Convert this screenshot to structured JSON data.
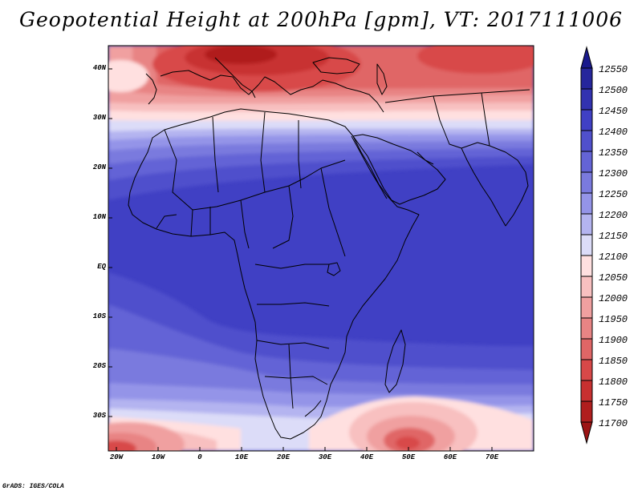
{
  "title": "Geopotential Height at 200hPa [gpm], VT: 2017111006",
  "credit": "GrADS: IGES/COLA",
  "lat_labels": [
    "40N",
    "30N",
    "20N",
    "10N",
    "EQ",
    "10S",
    "20S",
    "30S"
  ],
  "lon_labels": [
    "20W",
    "10W",
    "0",
    "10E",
    "20E",
    "30E",
    "40E",
    "50E",
    "60E",
    "70E"
  ],
  "colorbar": {
    "labels": [
      "12550",
      "12500",
      "12450",
      "12400",
      "12350",
      "12300",
      "12250",
      "12200",
      "12150",
      "12100",
      "12050",
      "12000",
      "11950",
      "11900",
      "11850",
      "11800",
      "11750",
      "11700"
    ],
    "colors": [
      "#1a1a8c",
      "#26269c",
      "#3232b0",
      "#4040c4",
      "#5050cc",
      "#6464d6",
      "#7a7ade",
      "#9494e8",
      "#b4b4f0",
      "#dcdcf8",
      "#ffe0e0",
      "#f8c0c0",
      "#f0a0a0",
      "#e88484",
      "#e06666",
      "#d84848",
      "#c83030",
      "#b01e1e",
      "#9c1414"
    ]
  },
  "chart_data": {
    "type": "heatmap",
    "title": "Geopotential Height at 200hPa [gpm], VT: 2017111006",
    "variable": "Geopotential Height",
    "level": "200hPa",
    "units": "gpm",
    "valid_time": "2017111006",
    "lon_range": [
      -22,
      80
    ],
    "lat_range": [
      -37,
      45
    ],
    "lon_ticks": [
      "20W",
      "10W",
      "0",
      "10E",
      "20E",
      "30E",
      "40E",
      "50E",
      "60E",
      "70E"
    ],
    "lat_ticks": [
      "40N",
      "30N",
      "20N",
      "10N",
      "EQ",
      "10S",
      "20S",
      "30S"
    ],
    "contour_levels": [
      11700,
      11750,
      11800,
      11850,
      11900,
      11950,
      12000,
      12050,
      12100,
      12150,
      12200,
      12250,
      12300,
      12350,
      12400,
      12450,
      12500,
      12550
    ],
    "colorbar": "blue (high) to red (low)",
    "note": "Tropical belt around 12450 gpm; lows around 11700-11800 gpm over the Mediterranean (near 40N) and southern tips (~35S)"
  }
}
